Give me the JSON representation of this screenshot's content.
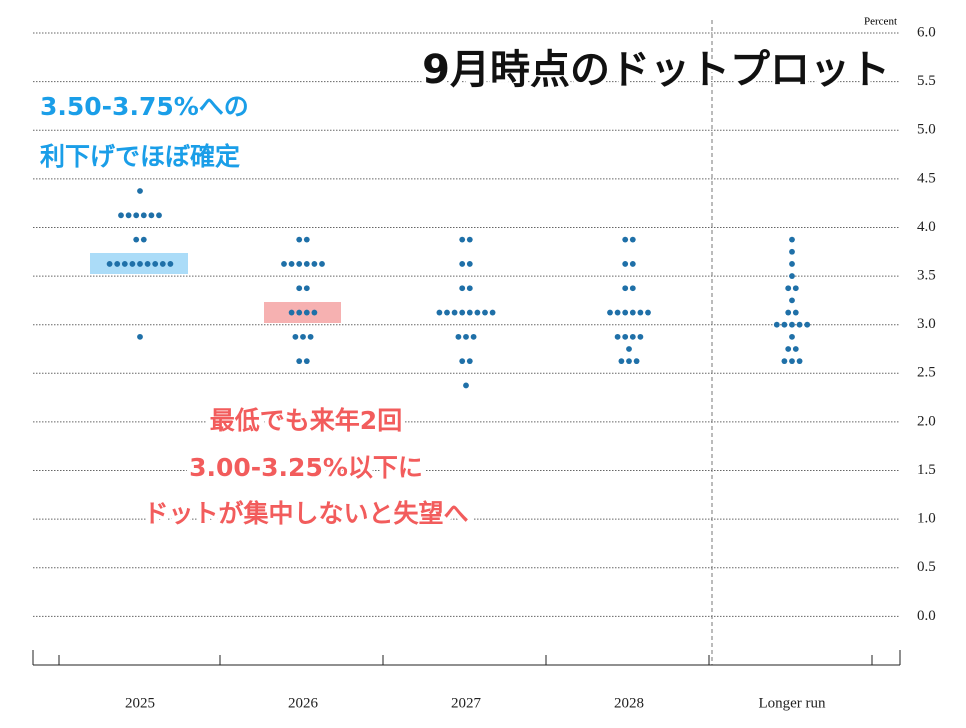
{
  "chart_data": {
    "type": "dot",
    "title": "9月時点のドットプロット",
    "y_unit": "Percent",
    "categories": [
      "2025",
      "2026",
      "2027",
      "2028",
      "Longer run"
    ],
    "dots": [
      [
        {
          "y": 4.375,
          "count": 1
        },
        {
          "y": 4.125,
          "count": 6
        },
        {
          "y": 3.875,
          "count": 2
        },
        {
          "y": 3.625,
          "count": 9
        },
        {
          "y": 2.875,
          "count": 1
        }
      ],
      [
        {
          "y": 3.875,
          "count": 2
        },
        {
          "y": 3.625,
          "count": 6
        },
        {
          "y": 3.375,
          "count": 2
        },
        {
          "y": 3.125,
          "count": 4
        },
        {
          "y": 2.875,
          "count": 3
        },
        {
          "y": 2.625,
          "count": 2
        }
      ],
      [
        {
          "y": 3.875,
          "count": 2
        },
        {
          "y": 3.625,
          "count": 2
        },
        {
          "y": 3.375,
          "count": 2
        },
        {
          "y": 3.125,
          "count": 8
        },
        {
          "y": 2.875,
          "count": 3
        },
        {
          "y": 2.625,
          "count": 2
        },
        {
          "y": 2.375,
          "count": 1
        }
      ],
      [
        {
          "y": 3.875,
          "count": 2
        },
        {
          "y": 3.625,
          "count": 2
        },
        {
          "y": 3.375,
          "count": 2
        },
        {
          "y": 3.125,
          "count": 6
        },
        {
          "y": 2.875,
          "count": 4
        },
        {
          "y": 2.75,
          "count": 1
        },
        {
          "y": 2.625,
          "count": 3
        }
      ],
      [
        {
          "y": 3.875,
          "count": 1
        },
        {
          "y": 3.75,
          "count": 1
        },
        {
          "y": 3.625,
          "count": 1
        },
        {
          "y": 3.5,
          "count": 1
        },
        {
          "y": 3.375,
          "count": 2
        },
        {
          "y": 3.25,
          "count": 1
        },
        {
          "y": 3.125,
          "count": 2
        },
        {
          "y": 3.0,
          "count": 5
        },
        {
          "y": 2.875,
          "count": 1
        },
        {
          "y": 2.75,
          "count": 2
        },
        {
          "y": 2.625,
          "count": 3
        }
      ]
    ],
    "color": "#1f70a8",
    "ylim": [
      -0.5,
      6.0
    ],
    "yticks": [
      {
        "value": 0,
        "label": "0.0"
      },
      0.5,
      {
        "value": 1,
        "label": "1.0"
      },
      1.5,
      {
        "value": 2,
        "label": "2.0"
      },
      2.5,
      {
        "value": 3,
        "label": "3.0"
      },
      3.5,
      {
        "value": 4,
        "label": "4.0"
      },
      4.5,
      {
        "value": 5,
        "label": "5.0"
      },
      5.5,
      {
        "value": 6,
        "label": "6.0"
      }
    ],
    "grid": true,
    "annotations": {
      "blue": [
        "3.50-3.75%への",
        "利下げでほぼ確定"
      ],
      "red": [
        "最低でも来年2回",
        "3.00-3.25%以下に",
        "ドットが集中しないと失望へ"
      ]
    }
  }
}
